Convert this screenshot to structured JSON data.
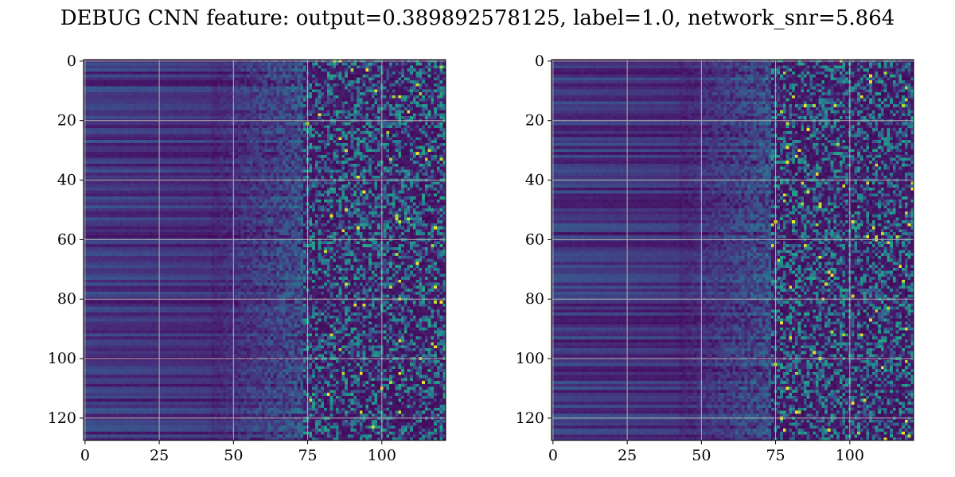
{
  "figure": {
    "title": "DEBUG CNN feature: output=0.389892578125, label=1.0, network_snr=5.864"
  },
  "chart_data": [
    {
      "type": "heatmap",
      "colormap": "viridis",
      "rows": 128,
      "cols": 122,
      "xlim": [
        -0.5,
        121.5
      ],
      "ylim": [
        127.5,
        -0.5
      ],
      "xticks": [
        0,
        25,
        50,
        75,
        100
      ],
      "yticks": [
        0,
        20,
        40,
        60,
        80,
        100,
        120
      ],
      "grid": true,
      "seed": 7,
      "title": "",
      "xlabel": "",
      "ylabel": ""
    },
    {
      "type": "heatmap",
      "colormap": "viridis",
      "rows": 128,
      "cols": 122,
      "xlim": [
        -0.5,
        121.5
      ],
      "ylim": [
        127.5,
        -0.5
      ],
      "xticks": [
        0,
        25,
        50,
        75,
        100
      ],
      "yticks": [
        0,
        20,
        40,
        60,
        80,
        100,
        120
      ],
      "grid": true,
      "seed": 13,
      "title": "",
      "xlabel": "",
      "ylabel": ""
    }
  ]
}
